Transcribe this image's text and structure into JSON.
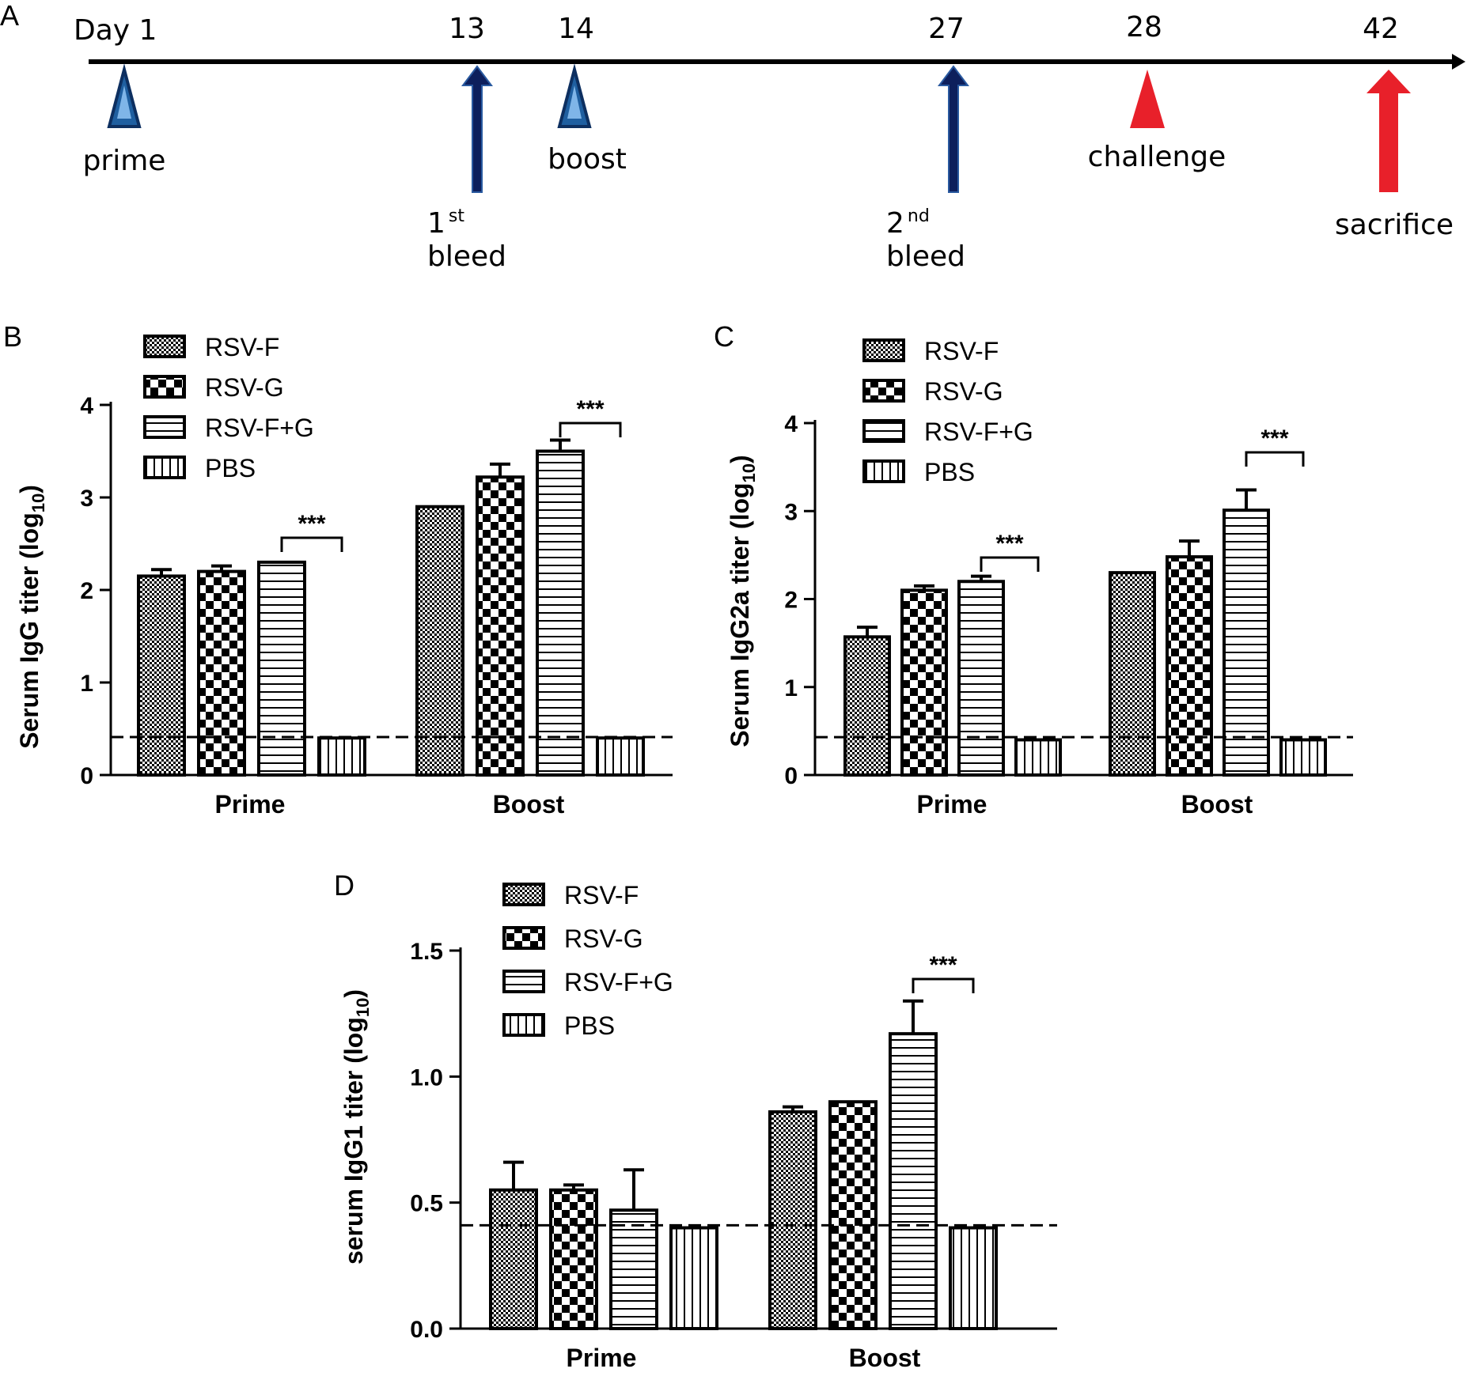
{
  "timeline": {
    "panel_label": "A",
    "ticks": [
      "Day 1",
      "13",
      "14",
      "27",
      "28",
      "42"
    ],
    "events": [
      {
        "day": 1,
        "kind": "triangle",
        "color": "#1f5fa0",
        "label": "prime"
      },
      {
        "day": 13,
        "kind": "arrow",
        "color": "#0d1f5c",
        "label_main": "1",
        "label_sup": "st",
        "label_line2": "bleed"
      },
      {
        "day": 14,
        "kind": "triangle",
        "color": "#1f5fa0",
        "label": "boost"
      },
      {
        "day": 27,
        "kind": "arrow",
        "color": "#0d1f5c",
        "label_main": "2",
        "label_sup": "nd",
        "label_line2": "bleed"
      },
      {
        "day": 28,
        "kind": "triangle",
        "color": "#e8202a",
        "label": "challenge"
      },
      {
        "day": 42,
        "kind": "arrow",
        "color": "#e8202a",
        "label": "sacrifice"
      }
    ]
  },
  "legend": {
    "entries": [
      "RSV-F",
      "RSV-G",
      "RSV-F+G",
      "PBS"
    ],
    "pattern_names": [
      "fine-checker",
      "coarse-checker",
      "horizontal-lines",
      "vertical-lines"
    ]
  },
  "chart_data": [
    {
      "panel_label": "B",
      "type": "bar",
      "ylabel_main": "Serum IgG titer (log",
      "ylabel_sub": "10",
      "ylabel_tail": ")",
      "categories": [
        "Prime",
        "Boost"
      ],
      "ylim": [
        0,
        4
      ],
      "yticks": [
        "0",
        "1",
        "2",
        "3",
        "4"
      ],
      "ytick_values": [
        0,
        1,
        2,
        3,
        4
      ],
      "series": [
        {
          "name": "RSV-F",
          "values": [
            2.15,
            2.9
          ],
          "errors": [
            0.07,
            0
          ]
        },
        {
          "name": "RSV-G",
          "values": [
            2.2,
            3.22
          ],
          "errors": [
            0.06,
            0.14
          ]
        },
        {
          "name": "RSV-F+G",
          "values": [
            2.3,
            3.5
          ],
          "errors": [
            0,
            0.12
          ]
        },
        {
          "name": "PBS",
          "values": [
            0.4,
            0.4
          ],
          "errors": [
            0,
            0
          ]
        }
      ],
      "detection_limit": 0.41,
      "significance": [
        {
          "group": "Prime",
          "text": "***"
        },
        {
          "group": "Boost",
          "text": "***"
        }
      ]
    },
    {
      "panel_label": "C",
      "type": "bar",
      "ylabel_main": "Serum IgG2a titer (log",
      "ylabel_sub": "10",
      "ylabel_tail": ")",
      "categories": [
        "Prime",
        "Boost"
      ],
      "ylim": [
        0,
        4
      ],
      "yticks": [
        "0",
        "1",
        "2",
        "3",
        "4"
      ],
      "ytick_values": [
        0,
        1,
        2,
        3,
        4
      ],
      "series": [
        {
          "name": "RSV-F",
          "values": [
            1.57,
            2.3
          ],
          "errors": [
            0.11,
            0
          ]
        },
        {
          "name": "RSV-G",
          "values": [
            2.1,
            2.48
          ],
          "errors": [
            0.05,
            0.18
          ]
        },
        {
          "name": "RSV-F+G",
          "values": [
            2.2,
            3.01
          ],
          "errors": [
            0.06,
            0.23
          ]
        },
        {
          "name": "PBS",
          "values": [
            0.4,
            0.4
          ],
          "errors": [
            0,
            0
          ]
        }
      ],
      "detection_limit": 0.43,
      "significance": [
        {
          "group": "Prime",
          "text": "***"
        },
        {
          "group": "Boost",
          "text": "***"
        }
      ]
    },
    {
      "panel_label": "D",
      "type": "bar",
      "ylabel_main": "serum IgG1 titer (log",
      "ylabel_sub": "10",
      "ylabel_tail": ")",
      "categories": [
        "Prime",
        "Boost"
      ],
      "ylim": [
        0,
        1.5
      ],
      "yticks": [
        "0.0",
        "0.5",
        "1.0",
        "1.5"
      ],
      "ytick_values": [
        0,
        0.5,
        1.0,
        1.5
      ],
      "series": [
        {
          "name": "RSV-F",
          "values": [
            0.55,
            0.86
          ],
          "errors": [
            0.11,
            0.02
          ]
        },
        {
          "name": "RSV-G",
          "values": [
            0.55,
            0.9
          ],
          "errors": [
            0.02,
            0
          ]
        },
        {
          "name": "RSV-F+G",
          "values": [
            0.47,
            1.17
          ],
          "errors": [
            0.16,
            0.13
          ]
        },
        {
          "name": "PBS",
          "values": [
            0.4,
            0.4
          ],
          "errors": [
            0,
            0
          ]
        }
      ],
      "detection_limit": 0.41,
      "significance": [
        {
          "group": "Boost",
          "text": "***"
        }
      ]
    }
  ]
}
